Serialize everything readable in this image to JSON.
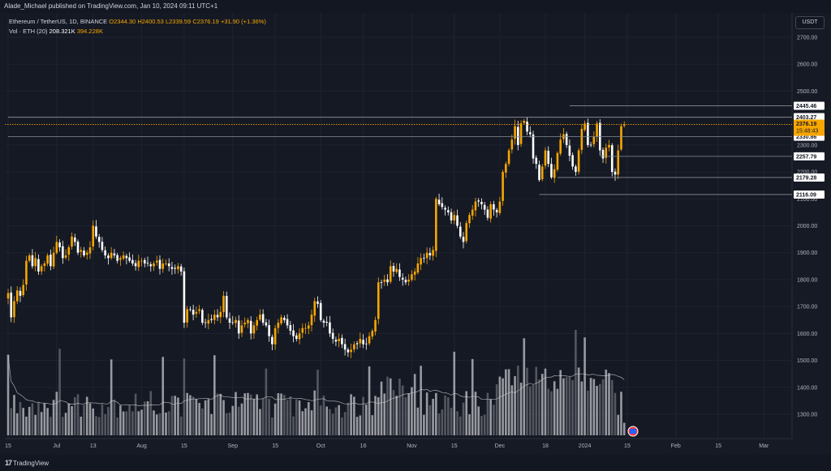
{
  "header": {
    "published": "Alade_Michael published on TradingView.com, Jan 10, 2024 09:11 UTC+1"
  },
  "legend": {
    "symbol": "Ethereum / TetherUS, 1D, BINANCE",
    "open": "O2344.30",
    "high": "H2400.53",
    "low": "L2339.59",
    "close": "C2376.19",
    "change": "+31.90 (+1.36%)",
    "volume_label": "Vol · ETH (20)",
    "volume_value": "208.321K",
    "volume_ma": "394.228K"
  },
  "currency": "USDT",
  "footer": {
    "brand": "TradingView"
  },
  "colors": {
    "up": "#f7a600",
    "down": "#ffffff",
    "volume": "#8c8f99",
    "grid": "#1f2330",
    "line": "#8a8d96",
    "price_tag": "#f7a600"
  },
  "chart_data": {
    "type": "candlestick",
    "symbol": "ETH/USDT",
    "timeframe": "1D",
    "ylim": [
      1230,
      2790
    ],
    "y_ticks": [
      1300,
      1400,
      1500,
      1600,
      1700,
      1800,
      1900,
      2000,
      2100,
      2200,
      2300,
      2400,
      2500,
      2600,
      2700
    ],
    "x_ticks": [
      "15",
      "Jul",
      "13",
      "Aug",
      "15",
      "Sep",
      "15",
      "Oct",
      "16",
      "Nov",
      "15",
      "Dec",
      "18",
      "2024",
      "15",
      "Feb",
      "15",
      "Mar"
    ],
    "x_tick_index": [
      0,
      16,
      28,
      44,
      58,
      74,
      88,
      103,
      117,
      133,
      147,
      162,
      177,
      190,
      204,
      220,
      234,
      249
    ],
    "horizontal_levels": [
      {
        "value": 2445.46,
        "label": "2445.46",
        "start": 185
      },
      {
        "value": 2403.27,
        "label": "2403.27",
        "start": 0
      },
      {
        "value": 2330.86,
        "label": "2330.86",
        "start": 0
      },
      {
        "value": 2257.79,
        "label": "2257.79",
        "start": 195
      },
      {
        "value": 2179.28,
        "label": "2179.28",
        "start": 181
      },
      {
        "value": 2116.09,
        "label": "2116.09",
        "start": 175
      }
    ],
    "last_price": {
      "value": 2376.19,
      "label": "2376.19",
      "countdown": "15:48:43"
    },
    "volume_scale": {
      "ymax": 2.0,
      "max_value": 2.1
    },
    "closes": [
      1750,
      1660,
      1720,
      1760,
      1740,
      1780,
      1870,
      1890,
      1850,
      1880,
      1830,
      1850,
      1860,
      1890,
      1850,
      1900,
      1940,
      1920,
      1880,
      1890,
      1920,
      1960,
      1940,
      1900,
      1910,
      1890,
      1900,
      1920,
      2000,
      1960,
      1940,
      1910,
      1890,
      1880,
      1900,
      1890,
      1870,
      1880,
      1890,
      1880,
      1870,
      1860,
      1850,
      1870,
      1870,
      1860,
      1860,
      1850,
      1860,
      1870,
      1840,
      1860,
      1860,
      1850,
      1840,
      1840,
      1850,
      1830,
      1640,
      1690,
      1690,
      1670,
      1680,
      1690,
      1640,
      1640,
      1650,
      1650,
      1670,
      1660,
      1680,
      1740,
      1660,
      1640,
      1640,
      1650,
      1600,
      1630,
      1640,
      1650,
      1600,
      1630,
      1650,
      1670,
      1640,
      1630,
      1590,
      1560,
      1620,
      1640,
      1660,
      1650,
      1630,
      1610,
      1590,
      1580,
      1600,
      1620,
      1620,
      1630,
      1670,
      1720,
      1710,
      1650,
      1640,
      1640,
      1600,
      1580,
      1570,
      1580,
      1560,
      1540,
      1530,
      1540,
      1560,
      1560,
      1580,
      1560,
      1560,
      1590,
      1610,
      1650,
      1790,
      1790,
      1800,
      1790,
      1850,
      1830,
      1840,
      1810,
      1800,
      1790,
      1800,
      1820,
      1830,
      1860,
      1880,
      1880,
      1900,
      1890,
      1910,
      2100,
      2080,
      2070,
      2060,
      2050,
      2020,
      2040,
      2000,
      1960,
      1940,
      2010,
      2040,
      2060,
      2090,
      2090,
      2080,
      2060,
      2030,
      2080,
      2060,
      2050,
      2090,
      2200,
      2230,
      2280,
      2320,
      2370,
      2300,
      2380,
      2390,
      2350,
      2340,
      2250,
      2230,
      2170,
      2220,
      2280,
      2230,
      2180,
      2210,
      2270,
      2320,
      2340,
      2300,
      2260,
      2220,
      2200,
      2280,
      2360,
      2380,
      2300,
      2300,
      2330,
      2380,
      2280,
      2250,
      2290,
      2300,
      2200,
      2190,
      2280,
      2370,
      2376
    ]
  }
}
